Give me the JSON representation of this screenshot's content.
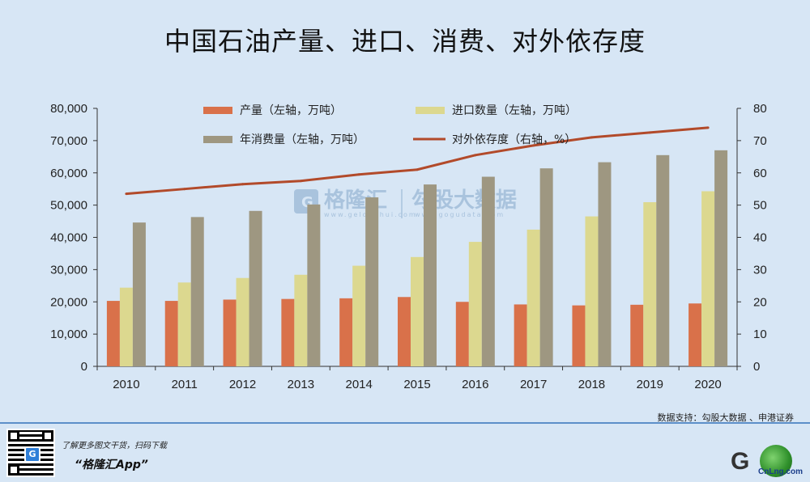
{
  "title": "中国石油产量、进口、消费、对外依存度",
  "legend": {
    "production": "产量（左轴，万吨）",
    "imports": "进口数量（左轴，万吨）",
    "consumption": "年消费量（左轴，万吨）",
    "dependency": "对外依存度（右轴，%）"
  },
  "watermark": {
    "brand": "格隆汇",
    "brand_sub": "www.gelonghui.com",
    "data_brand": "勾股大数据",
    "data_sub": "www.gogudata.com"
  },
  "source": "数据支持：勾股大数据 、申港证券",
  "footer": {
    "promo_line1": "了解更多图文干货，扫码下载",
    "promo_line2": "“格隆汇App”",
    "qr_label": "G",
    "logo_letter": "G",
    "logo_text": "CnLng.com"
  },
  "colors": {
    "production": "#d9714a",
    "imports": "#dcd88f",
    "consumption": "#9e9781",
    "dependency": "#b24a2a"
  },
  "chart_data": {
    "type": "bar",
    "categories": [
      "2010",
      "2011",
      "2012",
      "2013",
      "2014",
      "2015",
      "2016",
      "2017",
      "2018",
      "2019",
      "2020"
    ],
    "series": [
      {
        "name": "产量（左轴，万吨）",
        "axis": "left",
        "values": [
          20300,
          20300,
          20700,
          20900,
          21100,
          21500,
          20000,
          19200,
          18900,
          19100,
          19500
        ]
      },
      {
        "name": "进口数量（左轴，万吨）",
        "axis": "left",
        "values": [
          24400,
          26000,
          27400,
          28400,
          31200,
          33900,
          38600,
          42400,
          46500,
          50900,
          54300
        ]
      },
      {
        "name": "年消费量（左轴，万吨）",
        "axis": "left",
        "values": [
          44600,
          46300,
          48200,
          50200,
          52400,
          56400,
          58800,
          61400,
          63300,
          65500,
          67000
        ]
      },
      {
        "name": "对外依存度（右轴，%）",
        "axis": "right",
        "type": "line",
        "values": [
          53.5,
          55,
          56.5,
          57.5,
          59.5,
          61,
          65.5,
          68.5,
          71,
          72.5,
          74
        ]
      }
    ],
    "y_left": {
      "min": 0,
      "max": 80000,
      "ticks": [
        "0",
        "10,000",
        "20,000",
        "30,000",
        "40,000",
        "50,000",
        "60,000",
        "70,000",
        "80,000"
      ]
    },
    "y_right": {
      "min": 0,
      "max": 80,
      "ticks": [
        "0",
        "10",
        "20",
        "30",
        "40",
        "50",
        "60",
        "70",
        "80"
      ]
    },
    "grid": false,
    "legend_position": "top"
  }
}
